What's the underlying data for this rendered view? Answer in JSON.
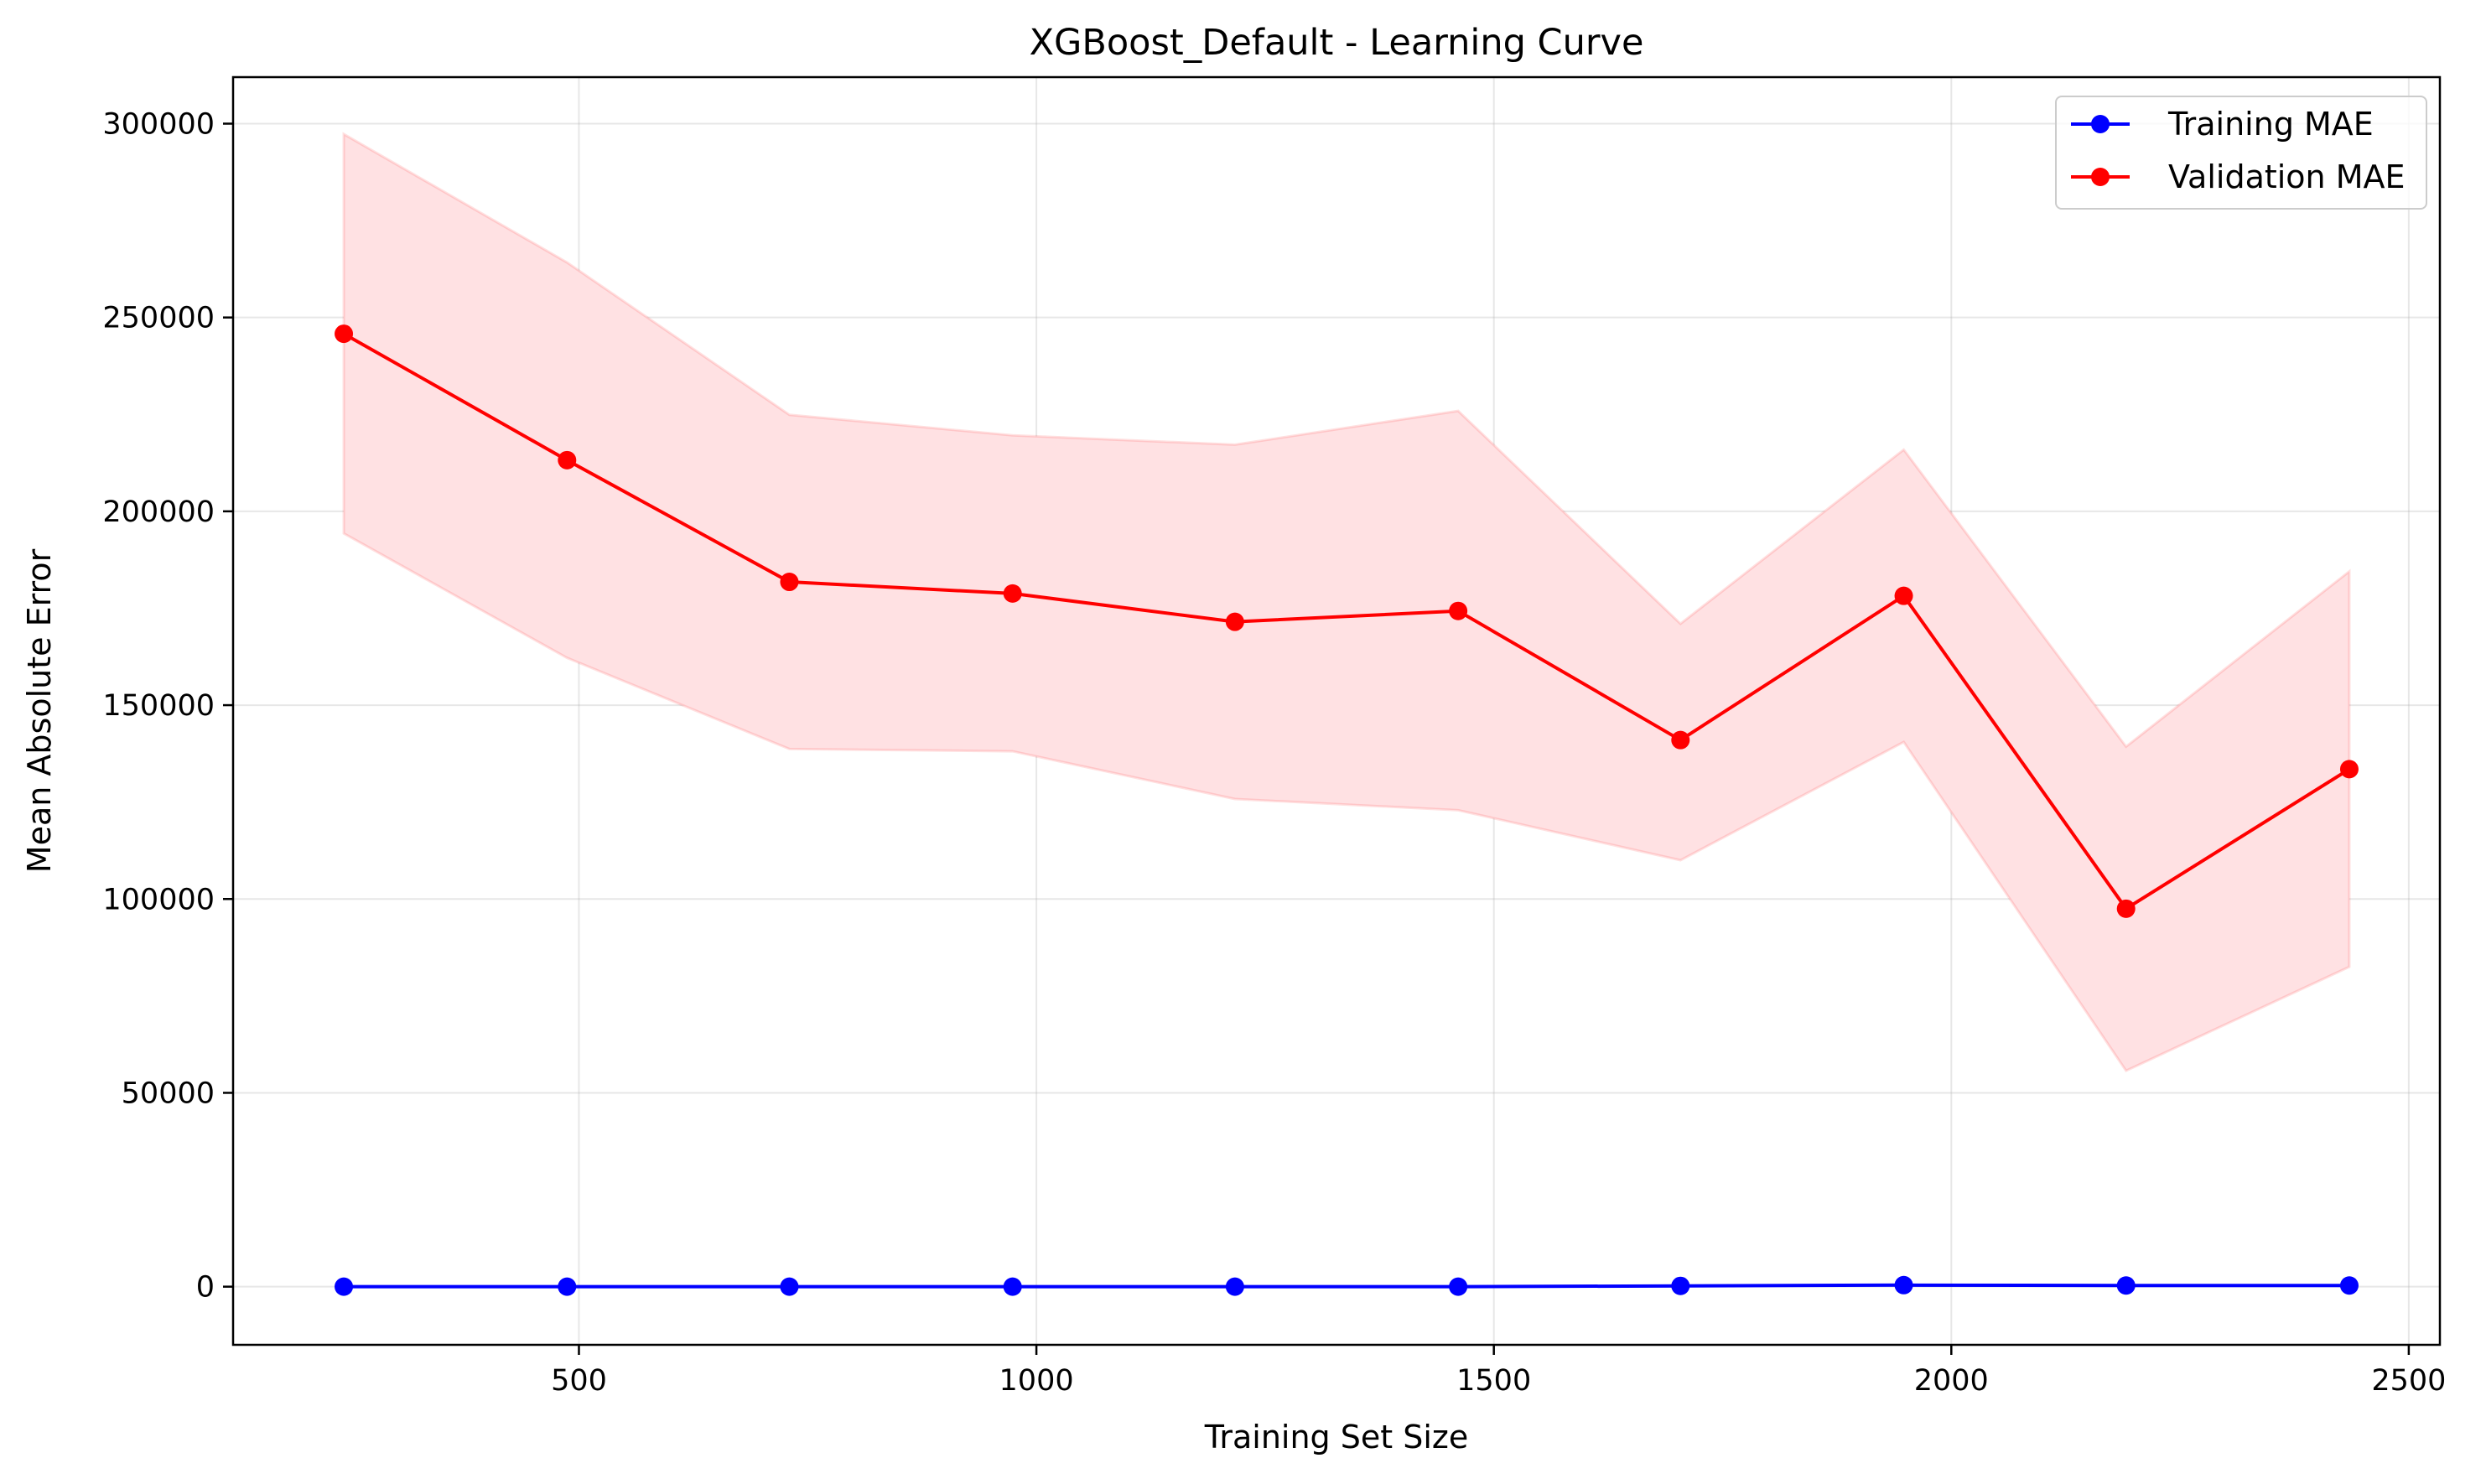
{
  "chart_data": {
    "type": "line",
    "title": "XGBoost_Default - Learning Curve",
    "xlabel": "Training Set Size",
    "ylabel": "Mean Absolute Error",
    "xlim": [
      122,
      2534
    ],
    "ylim": [
      -15000,
      312000
    ],
    "xticks": [
      500,
      1000,
      1500,
      2000,
      2500
    ],
    "xtick_labels": [
      "500",
      "1000",
      "1500",
      "2000",
      "2500"
    ],
    "yticks": [
      0,
      50000,
      100000,
      150000,
      200000,
      250000,
      300000
    ],
    "ytick_labels": [
      "0",
      "50000",
      "100000",
      "150000",
      "200000",
      "250000",
      "300000"
    ],
    "grid": true,
    "legend_position": "top-right",
    "x": [
      243,
      487,
      730,
      974,
      1217,
      1461,
      1704,
      1948,
      2191,
      2435
    ],
    "series": [
      {
        "name": "Training MAE",
        "color": "#0000ff",
        "values": [
          0,
          0,
          0,
          0,
          0,
          0,
          200,
          400,
          300,
          300
        ]
      },
      {
        "name": "Validation MAE",
        "color": "#ff0000",
        "values": [
          245800,
          213200,
          181800,
          178800,
          171500,
          174300,
          141000,
          178200,
          97500,
          133500
        ],
        "band_lower": [
          194300,
          162200,
          138700,
          138100,
          125800,
          122900,
          110000,
          140500,
          55700,
          82500
        ],
        "band_upper": [
          297300,
          264200,
          224900,
          219600,
          217200,
          225900,
          171000,
          215900,
          139300,
          184500
        ],
        "band_color": "#ffe1e3"
      }
    ]
  }
}
